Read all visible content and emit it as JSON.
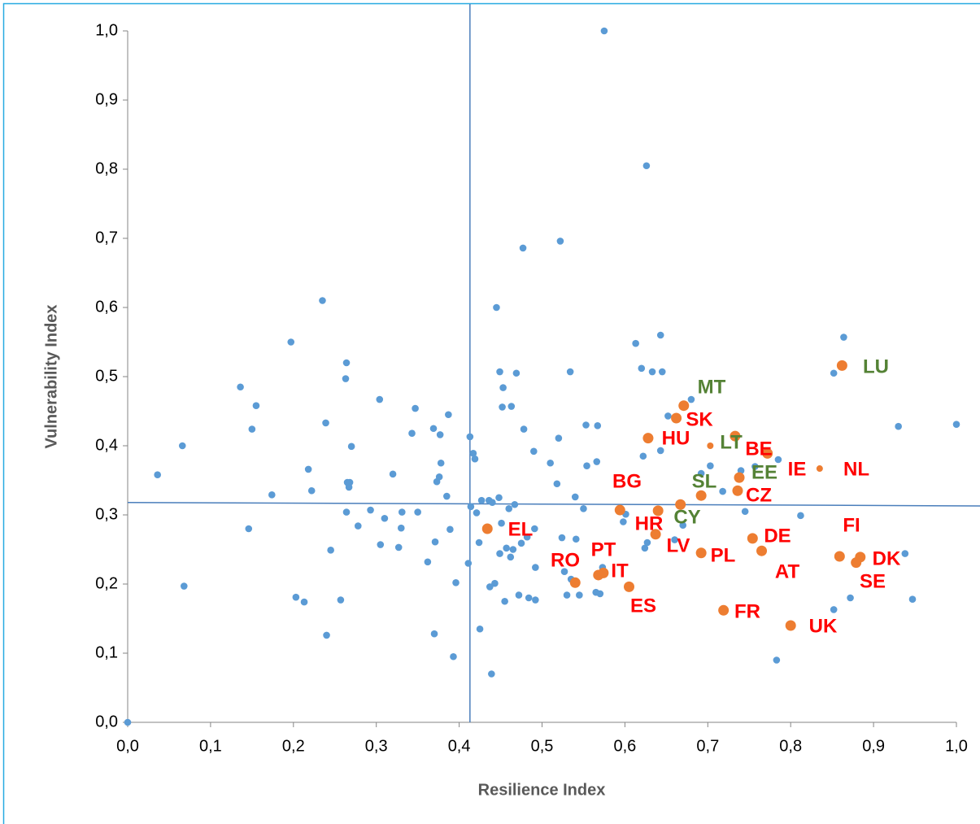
{
  "chart_data": {
    "type": "scatter",
    "xlabel": "Resilience Index",
    "ylabel": "Vulnerability Index",
    "xlim": [
      0,
      1
    ],
    "ylim": [
      0,
      1
    ],
    "xticks": [
      {
        "value": 0,
        "label": "0,0"
      },
      {
        "value": 0.1,
        "label": "0,1"
      },
      {
        "value": 0.2,
        "label": "0,2"
      },
      {
        "value": 0.3,
        "label": "0,3"
      },
      {
        "value": 0.4,
        "label": "0,4"
      },
      {
        "value": 0.5,
        "label": "0,5"
      },
      {
        "value": 0.6,
        "label": "0,6"
      },
      {
        "value": 0.7,
        "label": "0,7"
      },
      {
        "value": 0.8,
        "label": "0,8"
      },
      {
        "value": 0.9,
        "label": "0,9"
      },
      {
        "value": 1,
        "label": "1,0"
      }
    ],
    "yticks": [
      {
        "value": 0,
        "label": "0,0"
      },
      {
        "value": 0.1,
        "label": "0,1"
      },
      {
        "value": 0.2,
        "label": "0,2"
      },
      {
        "value": 0.3,
        "label": "0,3"
      },
      {
        "value": 0.4,
        "label": "0,4"
      },
      {
        "value": 0.5,
        "label": "0,5"
      },
      {
        "value": 0.6,
        "label": "0,6"
      },
      {
        "value": 0.7,
        "label": "0,7"
      },
      {
        "value": 0.8,
        "label": "0,8"
      },
      {
        "value": 0.9,
        "label": "0,9"
      },
      {
        "value": 1,
        "label": "1,0"
      }
    ],
    "vline": 0.413,
    "hline": {
      "x": [
        0,
        1.03
      ],
      "y": [
        0.318,
        0.313
      ]
    },
    "line_color": "#4a7ebb",
    "series": [
      {
        "color": "#5b9bd5",
        "x": [
          0.0,
          0.036,
          0.066,
          0.068,
          0.136,
          0.146,
          0.15,
          0.155,
          0.174,
          0.197,
          0.203,
          0.213,
          0.218,
          0.222,
          0.235,
          0.239,
          0.24,
          0.245,
          0.257,
          0.263,
          0.264,
          0.264,
          0.265,
          0.267,
          0.268,
          0.27,
          0.278,
          0.293,
          0.304,
          0.305,
          0.31,
          0.32,
          0.327,
          0.33,
          0.331,
          0.343,
          0.347,
          0.35,
          0.362,
          0.369,
          0.37,
          0.371,
          0.373,
          0.376,
          0.377,
          0.378,
          0.385,
          0.387,
          0.389,
          0.393,
          0.396,
          0.411,
          0.413,
          0.414,
          0.417,
          0.419,
          0.421,
          0.424,
          0.425,
          0.427,
          0.436,
          0.437,
          0.439,
          0.44,
          0.443,
          0.445,
          0.448,
          0.449,
          0.449,
          0.451,
          0.452,
          0.453,
          0.455,
          0.457,
          0.46,
          0.462,
          0.463,
          0.465,
          0.467,
          0.469,
          0.472,
          0.475,
          0.477,
          0.478,
          0.482,
          0.484,
          0.49,
          0.491,
          0.492,
          0.492,
          0.51,
          0.518,
          0.52,
          0.522,
          0.524,
          0.527,
          0.53,
          0.534,
          0.535,
          0.54,
          0.541,
          0.545,
          0.55,
          0.553,
          0.554,
          0.565,
          0.566,
          0.567,
          0.57,
          0.573,
          0.575,
          0.598,
          0.601,
          0.613,
          0.62,
          0.622,
          0.624,
          0.626,
          0.627,
          0.633,
          0.643,
          0.643,
          0.645,
          0.652,
          0.66,
          0.67,
          0.68,
          0.692,
          0.703,
          0.718,
          0.74,
          0.745,
          0.757,
          0.785,
          0.783,
          0.812,
          0.852,
          0.852,
          0.864,
          0.872,
          0.93,
          0.938,
          0.947,
          1.0
        ],
        "y": [
          0.0,
          0.358,
          0.4,
          0.197,
          0.485,
          0.28,
          0.424,
          0.458,
          0.329,
          0.55,
          0.181,
          0.174,
          0.366,
          0.335,
          0.61,
          0.433,
          0.126,
          0.249,
          0.177,
          0.497,
          0.52,
          0.304,
          0.347,
          0.34,
          0.347,
          0.399,
          0.284,
          0.307,
          0.467,
          0.257,
          0.295,
          0.359,
          0.253,
          0.281,
          0.304,
          0.418,
          0.454,
          0.304,
          0.232,
          0.425,
          0.128,
          0.261,
          0.348,
          0.355,
          0.416,
          0.375,
          0.327,
          0.445,
          0.279,
          0.095,
          0.202,
          0.23,
          0.413,
          0.312,
          0.389,
          0.381,
          0.303,
          0.26,
          0.135,
          0.321,
          0.321,
          0.196,
          0.07,
          0.318,
          0.201,
          0.6,
          0.325,
          0.507,
          0.244,
          0.288,
          0.456,
          0.484,
          0.175,
          0.252,
          0.309,
          0.239,
          0.457,
          0.25,
          0.315,
          0.505,
          0.184,
          0.259,
          0.686,
          0.424,
          0.268,
          0.18,
          0.392,
          0.28,
          0.177,
          0.224,
          0.375,
          0.345,
          0.411,
          0.696,
          0.267,
          0.218,
          0.184,
          0.507,
          0.207,
          0.326,
          0.265,
          0.184,
          0.309,
          0.43,
          0.371,
          0.188,
          0.377,
          0.429,
          0.186,
          0.224,
          1.0,
          0.29,
          0.301,
          0.548,
          0.512,
          0.385,
          0.252,
          0.805,
          0.26,
          0.507,
          0.393,
          0.56,
          0.507,
          0.443,
          0.264,
          0.285,
          0.467,
          0.36,
          0.371,
          0.334,
          0.364,
          0.305,
          0.37,
          0.38,
          0.09,
          0.299,
          0.163,
          0.505,
          0.557,
          0.18,
          0.428,
          0.244,
          0.178,
          0.431
        ]
      },
      {
        "color": "#ed7d31",
        "labels": [
          "LU",
          "MT",
          "SK",
          "HU",
          "LT",
          "BE",
          "IE",
          "NL",
          "EE",
          "SL",
          "CY",
          "CZ",
          "BG",
          "HR",
          "LV",
          "EL",
          "DE",
          "PL",
          "AT",
          "FI",
          "DK",
          "SE",
          "RO",
          "PT",
          "IT",
          "ES",
          "FR",
          "UK"
        ],
        "label_colors": [
          "#548235",
          "#548235",
          "#ff0000",
          "#ff0000",
          "#548235",
          "#ff0000",
          "#ff0000",
          "#ff0000",
          "#548235",
          "#548235",
          "#548235",
          "#ff0000",
          "#ff0000",
          "#ff0000",
          "#ff0000",
          "#ff0000",
          "#ff0000",
          "#ff0000",
          "#ff0000",
          "#ff0000",
          "#ff0000",
          "#ff0000",
          "#ff0000",
          "#ff0000",
          "#ff0000",
          "#ff0000",
          "#ff0000",
          "#ff0000"
        ],
        "x": [
          0.862,
          0.671,
          0.662,
          0.628,
          0.703,
          0.733,
          0.772,
          0.835,
          0.738,
          0.692,
          0.667,
          0.736,
          0.594,
          0.64,
          0.637,
          0.434,
          0.754,
          0.692,
          0.765,
          0.859,
          0.884,
          0.879,
          0.54,
          0.574,
          0.568,
          0.605,
          0.719,
          0.8
        ],
        "y": [
          0.516,
          0.458,
          0.44,
          0.411,
          0.4,
          0.414,
          0.389,
          0.367,
          0.354,
          0.328,
          0.315,
          0.335,
          0.307,
          0.306,
          0.272,
          0.28,
          0.266,
          0.245,
          0.248,
          0.24,
          0.239,
          0.231,
          0.202,
          0.216,
          0.213,
          0.196,
          0.162,
          0.14
        ]
      }
    ]
  }
}
